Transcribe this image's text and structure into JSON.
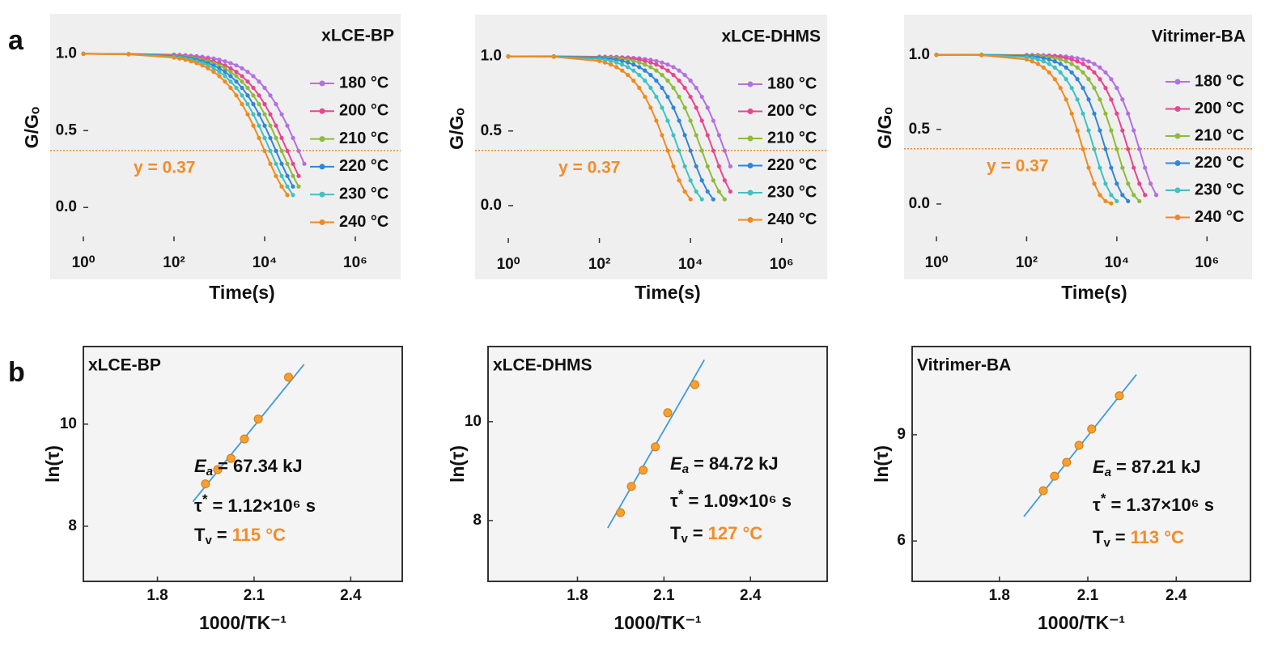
{
  "panel_labels": [
    "a",
    "b"
  ],
  "chart_data": [
    {
      "type": "line",
      "title": "xLCE-BP",
      "xlabel": "Time(s)",
      "ylabel": "G/Gₒ",
      "xscale": "log",
      "x": [
        1,
        10,
        100,
        133,
        178,
        237,
        316,
        422,
        562,
        750,
        1000,
        1334,
        1778,
        2371,
        3162,
        4217,
        5623,
        7499,
        10000,
        13335,
        17783,
        23714,
        31623,
        42170,
        56234,
        74989,
        100000
      ],
      "xlim": [
        1,
        10000000
      ],
      "xticks": [
        {
          "value": 1,
          "label": "10⁰"
        },
        {
          "value": 100,
          "label": "10²"
        },
        {
          "value": 10000,
          "label": "10⁴"
        },
        {
          "value": 1000000,
          "label": "10⁶"
        }
      ],
      "ylim": [
        -0.22,
        1.26
      ],
      "yticks": [
        {
          "value": 0,
          "label": "0.0"
        },
        0.5,
        {
          "value": 1,
          "label": "1.0"
        }
      ],
      "reference_line": {
        "y": 0.37,
        "label": "y = 0.37",
        "color": "#f28c28"
      },
      "legend": "right",
      "series": [
        {
          "name": "180 °C",
          "color": "#b46fe3",
          "values": [
            1.0,
            0.999,
            0.994,
            0.992,
            0.99,
            0.987,
            0.984,
            0.98,
            0.975,
            0.969,
            0.961,
            0.951,
            0.939,
            0.924,
            0.905,
            0.882,
            0.854,
            0.819,
            0.778,
            0.729,
            0.672,
            0.606,
            0.532,
            0.452,
            0.368,
            0.284,
            null
          ]
        },
        {
          "name": "200 °C",
          "color": "#e8458f",
          "values": [
            1.0,
            0.998,
            0.99,
            0.987,
            0.984,
            0.98,
            0.975,
            0.969,
            0.961,
            0.951,
            0.939,
            0.924,
            0.905,
            0.882,
            0.854,
            0.819,
            0.778,
            0.729,
            0.672,
            0.606,
            0.532,
            0.452,
            0.368,
            0.284,
            0.205,
            null,
            null
          ]
        },
        {
          "name": "210 °C",
          "color": "#8dbb3a",
          "values": [
            1.0,
            0.998,
            0.987,
            0.984,
            0.98,
            0.975,
            0.969,
            0.961,
            0.951,
            0.939,
            0.924,
            0.905,
            0.882,
            0.854,
            0.819,
            0.778,
            0.729,
            0.672,
            0.606,
            0.532,
            0.452,
            0.368,
            0.284,
            0.205,
            0.136,
            null,
            null
          ]
        },
        {
          "name": "220 °C",
          "color": "#2f86d9",
          "values": [
            1.0,
            0.997,
            0.984,
            0.98,
            0.975,
            0.969,
            0.961,
            0.951,
            0.939,
            0.924,
            0.905,
            0.882,
            0.854,
            0.819,
            0.778,
            0.729,
            0.672,
            0.606,
            0.532,
            0.452,
            0.368,
            0.284,
            0.205,
            0.136,
            null,
            null,
            null
          ]
        },
        {
          "name": "230 °C",
          "color": "#3fc2c2",
          "values": [
            1.0,
            0.997,
            0.98,
            0.975,
            0.969,
            0.961,
            0.951,
            0.939,
            0.924,
            0.905,
            0.882,
            0.854,
            0.819,
            0.778,
            0.729,
            0.672,
            0.606,
            0.532,
            0.452,
            0.368,
            0.284,
            0.205,
            0.136,
            0.081,
            null,
            null,
            null
          ]
        },
        {
          "name": "240 °C",
          "color": "#f08a1e",
          "values": [
            0.999,
            0.996,
            0.975,
            0.969,
            0.961,
            0.951,
            0.939,
            0.924,
            0.905,
            0.882,
            0.854,
            0.819,
            0.778,
            0.729,
            0.672,
            0.606,
            0.532,
            0.452,
            0.368,
            0.284,
            0.205,
            0.136,
            0.081,
            null,
            null,
            null,
            null
          ]
        }
      ]
    },
    {
      "type": "line",
      "title": "xLCE-DHMS",
      "xlabel": "Time(s)",
      "ylabel": "G/Gₒ",
      "xscale": "log",
      "x": [
        1,
        10,
        100,
        133,
        178,
        237,
        316,
        422,
        562,
        750,
        1000,
        1334,
        1778,
        2371,
        3162,
        4217,
        5623,
        7499,
        10000,
        13335,
        17783,
        23714,
        31623,
        42170,
        56234,
        74989,
        100000
      ],
      "xlim": [
        1,
        10000000
      ],
      "xticks": [
        {
          "value": 1,
          "label": "10⁰"
        },
        {
          "value": 100,
          "label": "10²"
        },
        {
          "value": 10000,
          "label": "10⁴"
        },
        {
          "value": 1000000,
          "label": "10⁶"
        }
      ],
      "ylim": [
        -0.25,
        1.28
      ],
      "yticks": [
        {
          "value": 0,
          "label": "0.0"
        },
        0.5,
        {
          "value": 1,
          "label": "1.0"
        }
      ],
      "reference_line": {
        "y": 0.37,
        "label": "y = 0.37",
        "color": "#f28c28"
      },
      "legend": "right",
      "series": [
        {
          "name": "180 °C",
          "color": "#b46fe3",
          "values": [
            1.0,
            1.0,
            0.998,
            0.998,
            0.997,
            0.996,
            0.994,
            0.993,
            0.99,
            0.987,
            0.982,
            0.977,
            0.969,
            0.959,
            0.945,
            0.928,
            0.905,
            0.875,
            0.837,
            0.789,
            0.729,
            0.656,
            0.569,
            0.472,
            0.368,
            0.263,
            null
          ]
        },
        {
          "name": "200 °C",
          "color": "#e8458f",
          "values": [
            1.0,
            1.0,
            0.997,
            0.996,
            0.994,
            0.993,
            0.99,
            0.987,
            0.982,
            0.977,
            0.969,
            0.959,
            0.945,
            0.928,
            0.905,
            0.875,
            0.837,
            0.789,
            0.729,
            0.656,
            0.569,
            0.472,
            0.368,
            0.263,
            0.169,
            0.094,
            null
          ]
        },
        {
          "name": "210 °C",
          "color": "#8dbb3a",
          "values": [
            1.0,
            0.999,
            0.994,
            0.993,
            0.99,
            0.987,
            0.982,
            0.977,
            0.969,
            0.959,
            0.945,
            0.928,
            0.905,
            0.875,
            0.837,
            0.789,
            0.729,
            0.656,
            0.569,
            0.472,
            0.368,
            0.263,
            0.169,
            0.094,
            0.042,
            null,
            null
          ]
        },
        {
          "name": "220 °C",
          "color": "#2f86d9",
          "values": [
            1.0,
            0.999,
            0.99,
            0.987,
            0.982,
            0.977,
            0.969,
            0.959,
            0.945,
            0.928,
            0.905,
            0.875,
            0.837,
            0.789,
            0.729,
            0.656,
            0.569,
            0.472,
            0.368,
            0.263,
            0.169,
            0.094,
            0.042,
            null,
            null,
            null,
            null
          ]
        },
        {
          "name": "230 °C",
          "color": "#3fc2c2",
          "values": [
            1.0,
            0.998,
            0.982,
            0.977,
            0.969,
            0.959,
            0.945,
            0.928,
            0.905,
            0.875,
            0.837,
            0.789,
            0.729,
            0.656,
            0.569,
            0.472,
            0.368,
            0.263,
            0.169,
            0.094,
            0.042,
            null,
            null,
            null,
            null,
            null,
            null
          ]
        },
        {
          "name": "240 °C",
          "color": "#f08a1e",
          "values": [
            1.0,
            0.997,
            0.969,
            0.959,
            0.945,
            0.928,
            0.905,
            0.875,
            0.837,
            0.789,
            0.729,
            0.656,
            0.569,
            0.472,
            0.368,
            0.263,
            0.169,
            0.094,
            0.042,
            null,
            null,
            null,
            null,
            null,
            null,
            null,
            null
          ]
        }
      ]
    },
    {
      "type": "line",
      "title": "Vitrimer-BA",
      "xlabel": "Time(s)",
      "ylabel": "G/Gₒ",
      "xscale": "log",
      "x": [
        1,
        10,
        100,
        133,
        178,
        237,
        316,
        422,
        562,
        750,
        1000,
        1334,
        1778,
        2371,
        3162,
        4217,
        5623,
        7499,
        10000,
        13335,
        17783,
        23714,
        31623,
        42170,
        56234,
        74989,
        100000
      ],
      "xlim": [
        1,
        10000000
      ],
      "xticks": [
        {
          "value": 1,
          "label": "10⁰"
        },
        {
          "value": 100,
          "label": "10²"
        },
        {
          "value": 10000,
          "label": "10⁴"
        },
        {
          "value": 1000000,
          "label": "10⁶"
        }
      ],
      "ylim": [
        -0.25,
        1.27
      ],
      "yticks": [
        {
          "value": 0,
          "label": "0.0"
        },
        0.5,
        {
          "value": 1,
          "label": "1.0"
        }
      ],
      "reference_line": {
        "y": 0.37,
        "label": "y = 0.37",
        "color": "#f28c28"
      },
      "legend": "right",
      "series": [
        {
          "name": "180 °C",
          "color": "#b46fe3",
          "values": [
            1.0,
            1.0,
            0.999,
            0.999,
            0.998,
            0.997,
            0.996,
            0.994,
            0.992,
            0.989,
            0.984,
            0.978,
            0.969,
            0.956,
            0.939,
            0.915,
            0.882,
            0.837,
            0.778,
            0.701,
            0.606,
            0.493,
            0.368,
            0.243,
            0.136,
            0.06,
            null
          ]
        },
        {
          "name": "200 °C",
          "color": "#e8458f",
          "values": [
            1.0,
            1.0,
            0.998,
            0.997,
            0.996,
            0.994,
            0.992,
            0.989,
            0.984,
            0.978,
            0.969,
            0.956,
            0.939,
            0.915,
            0.882,
            0.837,
            0.778,
            0.701,
            0.606,
            0.493,
            0.368,
            0.243,
            0.136,
            0.06,
            null,
            null,
            null
          ]
        },
        {
          "name": "210 °C",
          "color": "#8dbb3a",
          "values": [
            1.0,
            1.0,
            0.996,
            0.994,
            0.992,
            0.989,
            0.984,
            0.978,
            0.969,
            0.956,
            0.939,
            0.915,
            0.882,
            0.837,
            0.778,
            0.701,
            0.606,
            0.493,
            0.368,
            0.243,
            0.136,
            0.06,
            0.019,
            null,
            null,
            null,
            null
          ]
        },
        {
          "name": "220 °C",
          "color": "#2f86d9",
          "values": [
            1.0,
            1.0,
            0.992,
            0.989,
            0.984,
            0.978,
            0.969,
            0.956,
            0.939,
            0.915,
            0.882,
            0.837,
            0.778,
            0.701,
            0.606,
            0.493,
            0.368,
            0.243,
            0.136,
            0.06,
            0.019,
            null,
            null,
            null,
            null,
            null,
            null
          ]
        },
        {
          "name": "230 °C",
          "color": "#3fc2c2",
          "values": [
            1.0,
            0.999,
            0.984,
            0.978,
            0.969,
            0.956,
            0.939,
            0.915,
            0.882,
            0.837,
            0.778,
            0.701,
            0.606,
            0.493,
            0.368,
            0.243,
            0.136,
            0.06,
            0.019,
            null,
            null,
            null,
            null,
            null,
            null,
            null,
            null
          ]
        },
        {
          "name": "240 °C",
          "color": "#f08a1e",
          "values": [
            1.0,
            0.998,
            0.969,
            0.956,
            0.939,
            0.915,
            0.882,
            0.837,
            0.778,
            0.701,
            0.606,
            0.493,
            0.368,
            0.243,
            0.136,
            0.06,
            0.019,
            0.004,
            null,
            null,
            null,
            null,
            null,
            null,
            null,
            null,
            null
          ]
        }
      ]
    },
    {
      "type": "scatter",
      "title": "xLCE-BP",
      "xlabel": "1000/TK⁻¹",
      "ylabel": "ln(τ)",
      "x": [
        1.949,
        1.987,
        2.028,
        2.07,
        2.113,
        2.207
      ],
      "values": [
        8.83,
        9.11,
        9.33,
        9.71,
        10.1,
        10.92
      ],
      "color": "#f5a030",
      "fit": {
        "x": [
          1.91,
          2.255
        ],
        "y": [
          8.48,
          11.17
        ],
        "color": "#3e9be0"
      },
      "xlim": [
        1.57,
        2.56
      ],
      "xticks": [
        1.8,
        2.1,
        2.4
      ],
      "ylim": [
        6.92,
        11.52
      ],
      "yticks": [
        8,
        10
      ],
      "annotations": [
        {
          "symbol": "E",
          "sub": "a",
          "text": "= 67.34 kJ"
        },
        {
          "symbol": "τ",
          "sup": "*",
          "text": "= 1.12×10⁶ s"
        },
        {
          "symbol": "T",
          "sub": "v",
          "text": "=",
          "highlight": "115 °C",
          "highlight_color": "#f28c28"
        }
      ]
    },
    {
      "type": "scatter",
      "title": "xLCE-DHMS",
      "xlabel": "1000/TK⁻¹",
      "ylabel": "ln(τ)",
      "x": [
        1.949,
        1.987,
        2.028,
        2.07,
        2.113,
        2.207
      ],
      "values": [
        8.16,
        8.69,
        9.02,
        9.49,
        10.18,
        10.75
      ],
      "color": "#f5a030",
      "fit": {
        "x": [
          1.905,
          2.24
        ],
        "y": [
          7.85,
          11.25
        ],
        "color": "#3e9be0"
      },
      "xlim": [
        1.49,
        2.666
      ],
      "xticks": [
        1.8,
        2.1,
        2.4
      ],
      "ylim": [
        6.77,
        11.52
      ],
      "yticks": [
        8,
        10
      ],
      "annotations": [
        {
          "symbol": "E",
          "sub": "a",
          "text": "= 84.72 kJ"
        },
        {
          "symbol": "τ",
          "sup": "*",
          "text": "= 1.09×10⁶ s"
        },
        {
          "symbol": "T",
          "sub": "v",
          "text": "=",
          "highlight": "127 °C",
          "highlight_color": "#f28c28"
        }
      ]
    },
    {
      "type": "scatter",
      "title": "Vitrimer-BA",
      "xlabel": "1000/TK⁻¹",
      "ylabel": "ln(τ)",
      "x": [
        1.949,
        1.987,
        2.028,
        2.07,
        2.113,
        2.207
      ],
      "values": [
        7.42,
        7.83,
        8.22,
        8.7,
        9.16,
        10.1
      ],
      "color": "#f5a030",
      "fit": {
        "x": [
          1.883,
          2.265
        ],
        "y": [
          6.69,
          10.7
        ],
        "color": "#3e9be0"
      },
      "xlim": [
        1.504,
        2.652
      ],
      "xticks": [
        1.8,
        2.1,
        2.4
      ],
      "ylim": [
        4.86,
        11.49
      ],
      "yticks": [
        6,
        9
      ],
      "annotations": [
        {
          "symbol": "E",
          "sub": "a",
          "text": "= 87.21 kJ"
        },
        {
          "symbol": "τ",
          "sup": "*",
          "text": "= 1.37×10⁶ s"
        },
        {
          "symbol": "T",
          "sub": "v",
          "text": "=",
          "highlight": "113 °C",
          "highlight_color": "#f28c28"
        }
      ]
    }
  ]
}
